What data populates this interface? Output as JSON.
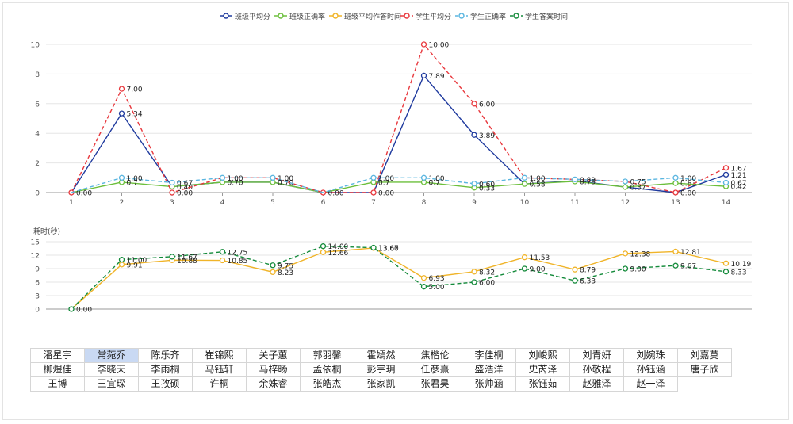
{
  "legend": [
    {
      "label": "班级平均分",
      "color": "#1f3a9e",
      "dash": false
    },
    {
      "label": "班级正确率",
      "color": "#6cbf3c",
      "dash": false
    },
    {
      "label": "班级平均作答时间",
      "color": "#f0b429",
      "dash": false
    },
    {
      "label": "学生平均分",
      "color": "#e8383d",
      "dash": true
    },
    {
      "label": "学生正确率",
      "color": "#5bb6e0",
      "dash": true
    },
    {
      "label": "学生答案时间",
      "color": "#138a3a",
      "dash": true
    }
  ],
  "chart_data": [
    {
      "type": "line",
      "x": [
        "1",
        "2",
        "3",
        "4",
        "5",
        "6",
        "7",
        "8",
        "9",
        "10",
        "11",
        "12",
        "13",
        "14"
      ],
      "ylim": [
        0,
        10
      ],
      "yticks": [
        "0",
        "2",
        "4",
        "6",
        "8",
        "10"
      ],
      "series": [
        {
          "name": "班级平均分",
          "color": "#1f3a9e",
          "dash": false,
          "values": [
            0,
            5.34,
            0.4,
            0.7,
            0.7,
            0,
            0,
            7.89,
            3.89,
            0.58,
            0.8,
            0.37,
            0,
            1.21
          ],
          "show": [
            false,
            true,
            false,
            false,
            false,
            false,
            false,
            true,
            true,
            false,
            false,
            false,
            false,
            true
          ],
          "labels": [
            "",
            "5.34",
            "",
            "",
            "",
            "",
            "",
            "7.89",
            "3.89",
            "",
            "",
            "",
            "",
            "1.21"
          ]
        },
        {
          "name": "班级正确率",
          "color": "#6cbf3c",
          "dash": false,
          "values": [
            0,
            0.7,
            0.4,
            0.7,
            0.7,
            0,
            0.7,
            0.7,
            0.33,
            0.58,
            0.75,
            0.37,
            0.63,
            0.42
          ],
          "show": [
            false,
            true,
            true,
            true,
            true,
            false,
            true,
            true,
            true,
            true,
            true,
            true,
            true,
            true
          ],
          "labels": [
            "",
            "0.7",
            "0.40",
            "0.70",
            "0.70",
            "",
            "0.7",
            "0.7",
            "0.33",
            "0.58",
            "0.75",
            "0.37",
            "0.63",
            "0.42"
          ]
        },
        {
          "name": "学生平均分",
          "color": "#e8383d",
          "dash": true,
          "values": [
            0,
            7,
            0,
            1,
            1,
            0,
            0,
            10,
            6,
            1,
            0.89,
            0.75,
            0,
            1.67
          ],
          "show": [
            true,
            true,
            true,
            false,
            false,
            true,
            true,
            true,
            true,
            false,
            false,
            false,
            true,
            true
          ],
          "labels": [
            "0.00",
            "7.00",
            "0.00",
            "",
            "",
            "0.00",
            "0.00",
            "10.00",
            "6.00",
            "",
            "",
            "",
            "0.00",
            "1.67"
          ]
        },
        {
          "name": "学生正确率",
          "color": "#5bb6e0",
          "dash": true,
          "values": [
            0,
            1,
            0.67,
            1,
            1,
            0,
            1,
            1,
            0.6,
            1,
            0.89,
            0.75,
            1,
            0.67
          ],
          "show": [
            false,
            true,
            true,
            true,
            true,
            false,
            true,
            true,
            true,
            true,
            true,
            true,
            true,
            true
          ],
          "labels": [
            "",
            "1.00",
            "0.67",
            "1.00",
            "1.00",
            "",
            "1.00",
            "1.00",
            "0.60",
            "1.00",
            "0.89",
            "0.75",
            "1.00",
            "0.67"
          ]
        }
      ]
    },
    {
      "type": "line",
      "ylabel": "耗时(秒)",
      "ylim": [
        0,
        15
      ],
      "yticks": [
        "0",
        "3",
        "6",
        "9",
        "12",
        "15"
      ],
      "series": [
        {
          "name": "班级平均作答时间",
          "color": "#f0b429",
          "dash": false,
          "values": [
            0,
            9.91,
            10.88,
            10.85,
            8.23,
            12.66,
            13.6,
            6.93,
            8.32,
            11.53,
            8.79,
            12.38,
            12.81,
            10.19
          ],
          "show": [
            false,
            true,
            true,
            true,
            true,
            true,
            true,
            true,
            true,
            true,
            true,
            true,
            true,
            true
          ],
          "labels": [
            "",
            "9.91",
            "10.88",
            "10.85",
            "8.23",
            "12.66",
            "13.60",
            "6.93",
            "8.32",
            "11.53",
            "8.79",
            "12.38",
            "12.81",
            "10.19"
          ]
        },
        {
          "name": "学生答案时间",
          "color": "#138a3a",
          "dash": true,
          "values": [
            0,
            11,
            11.67,
            12.75,
            9.75,
            14,
            13.67,
            5,
            6,
            9,
            6.33,
            9,
            9.67,
            8.33
          ],
          "show": [
            true,
            true,
            true,
            true,
            true,
            true,
            true,
            true,
            true,
            true,
            true,
            true,
            true,
            true
          ],
          "labels": [
            "0.00",
            "11.00",
            "11.67",
            "12.75",
            "9.75",
            "14.00",
            "13.67",
            "5.00",
            "6.00",
            "9.00",
            "6.33",
            "9.00",
            "9.67",
            "8.33"
          ]
        }
      ]
    }
  ],
  "students": [
    [
      "潘星宇",
      "常菀乔",
      "陈乐齐",
      "崔锦熙",
      "关子蕙",
      "郭羽馨",
      "霍嫣然",
      "焦楷伦",
      "李佳桐",
      "刘峻熙",
      "刘青妍",
      "刘婉珠",
      "刘嘉莫"
    ],
    [
      "柳煜佳",
      "李晓天",
      "李雨桐",
      "马钰轩",
      "马梓旸",
      "孟依桐",
      "彭宇玥",
      "任彦熹",
      "盛浩洋",
      "史芮泽",
      "孙敬程",
      "孙钰涵",
      "唐子欣"
    ],
    [
      "王博",
      "王宜琛",
      "王孜硕",
      "许桐",
      "余姝睿",
      "张皓杰",
      "张家凯",
      "张君昊",
      "张帅涵",
      "张钰茹",
      "赵雅泽",
      "赵一泽"
    ]
  ],
  "selected_student": "常菀乔"
}
